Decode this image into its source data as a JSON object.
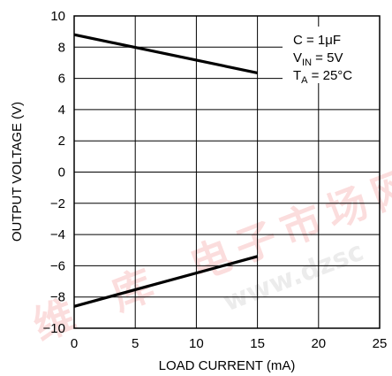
{
  "chart_data": {
    "type": "line",
    "xlabel": "LOAD CURRENT (mA)",
    "ylabel": "OUTPUT VOLTAGE (V)",
    "xlim": [
      0,
      25
    ],
    "ylim": [
      -10,
      10
    ],
    "x_ticks": [
      "0",
      "5",
      "10",
      "15",
      "20",
      "25"
    ],
    "y_ticks": [
      "10",
      "8",
      "6",
      "4",
      "2",
      "0",
      "−2",
      "−4",
      "−6",
      "−8",
      "−10"
    ],
    "grid": true,
    "series": [
      {
        "x": [
          0,
          15
        ],
        "y": [
          8.8,
          6.35
        ]
      },
      {
        "x": [
          0,
          15
        ],
        "y": [
          -8.6,
          -5.4
        ]
      }
    ],
    "annotations": [
      {
        "prefix": "C = 1",
        "suffix": "μF"
      },
      {
        "prefix": "V",
        "sub": "IN",
        "suffix": " = 5V"
      },
      {
        "prefix": "T",
        "sub": "A",
        "suffix": " = 25°C"
      }
    ],
    "watermark": {
      "chars": [
        "维",
        "库",
        "电",
        "子",
        "市",
        "场",
        "网"
      ],
      "url": "www.dzsc"
    },
    "colors": {
      "line": "#000000",
      "grid": "#000000",
      "watermark": "#e60000"
    }
  }
}
